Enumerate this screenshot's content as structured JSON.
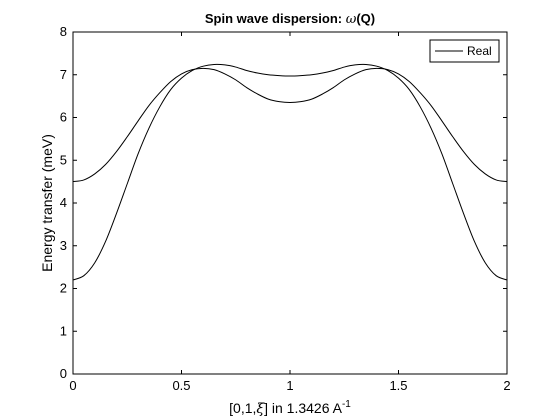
{
  "chart_data": {
    "type": "line",
    "title_main": "Spin wave dispersion: ",
    "title_omega": "ω",
    "title_tail": "(Q)",
    "xlabel_pre": "[0,1,",
    "xlabel_xi": "ξ",
    "xlabel_post": "] in 1.3426 A",
    "xlabel_sup": "-1",
    "ylabel": "Energy transfer (meV)",
    "xlim": [
      0,
      2
    ],
    "ylim": [
      0,
      8
    ],
    "xticks": [
      "0",
      "0.5",
      "1",
      "1.5",
      "2"
    ],
    "yticks": [
      "0",
      "1",
      "2",
      "3",
      "4",
      "5",
      "6",
      "7",
      "8"
    ],
    "legend": {
      "label": "Real",
      "position": "top-right"
    },
    "line_color": "#000000",
    "series": [
      {
        "x": [
          0,
          0.05,
          0.1,
          0.15,
          0.2,
          0.25,
          0.3,
          0.35,
          0.4,
          0.45,
          0.5,
          0.55,
          0.6,
          0.65,
          0.7,
          0.75,
          0.8,
          0.85,
          0.9,
          0.95,
          1.0,
          1.05,
          1.1,
          1.15,
          1.2,
          1.25,
          1.3,
          1.35,
          1.4,
          1.45,
          1.5,
          1.55,
          1.6,
          1.65,
          1.7,
          1.75,
          1.8,
          1.85,
          1.9,
          1.95,
          2.0
        ],
        "y": [
          4.5,
          4.54,
          4.68,
          4.9,
          5.2,
          5.55,
          5.92,
          6.28,
          6.58,
          6.84,
          7.02,
          7.12,
          7.15,
          7.12,
          7.02,
          6.88,
          6.7,
          6.55,
          6.43,
          6.37,
          6.35,
          6.37,
          6.43,
          6.55,
          6.7,
          6.88,
          7.02,
          7.12,
          7.15,
          7.12,
          7.02,
          6.84,
          6.58,
          6.28,
          5.92,
          5.55,
          5.2,
          4.9,
          4.68,
          4.54,
          4.5
        ]
      },
      {
        "x": [
          0,
          0.05,
          0.1,
          0.15,
          0.2,
          0.25,
          0.3,
          0.35,
          0.4,
          0.45,
          0.5,
          0.55,
          0.6,
          0.65,
          0.7,
          0.75,
          0.8,
          0.85,
          0.9,
          0.95,
          1.0,
          1.05,
          1.1,
          1.15,
          1.2,
          1.25,
          1.3,
          1.35,
          1.4,
          1.45,
          1.5,
          1.55,
          1.6,
          1.65,
          1.7,
          1.75,
          1.8,
          1.85,
          1.9,
          1.95,
          2.0
        ],
        "y": [
          2.2,
          2.3,
          2.6,
          3.1,
          3.75,
          4.45,
          5.15,
          5.75,
          6.25,
          6.65,
          6.92,
          7.1,
          7.2,
          7.24,
          7.23,
          7.18,
          7.1,
          7.04,
          7.0,
          6.98,
          6.97,
          6.98,
          7.0,
          7.04,
          7.1,
          7.18,
          7.23,
          7.24,
          7.2,
          7.1,
          6.92,
          6.65,
          6.25,
          5.75,
          5.15,
          4.45,
          3.75,
          3.1,
          2.6,
          2.3,
          2.2
        ]
      }
    ]
  }
}
